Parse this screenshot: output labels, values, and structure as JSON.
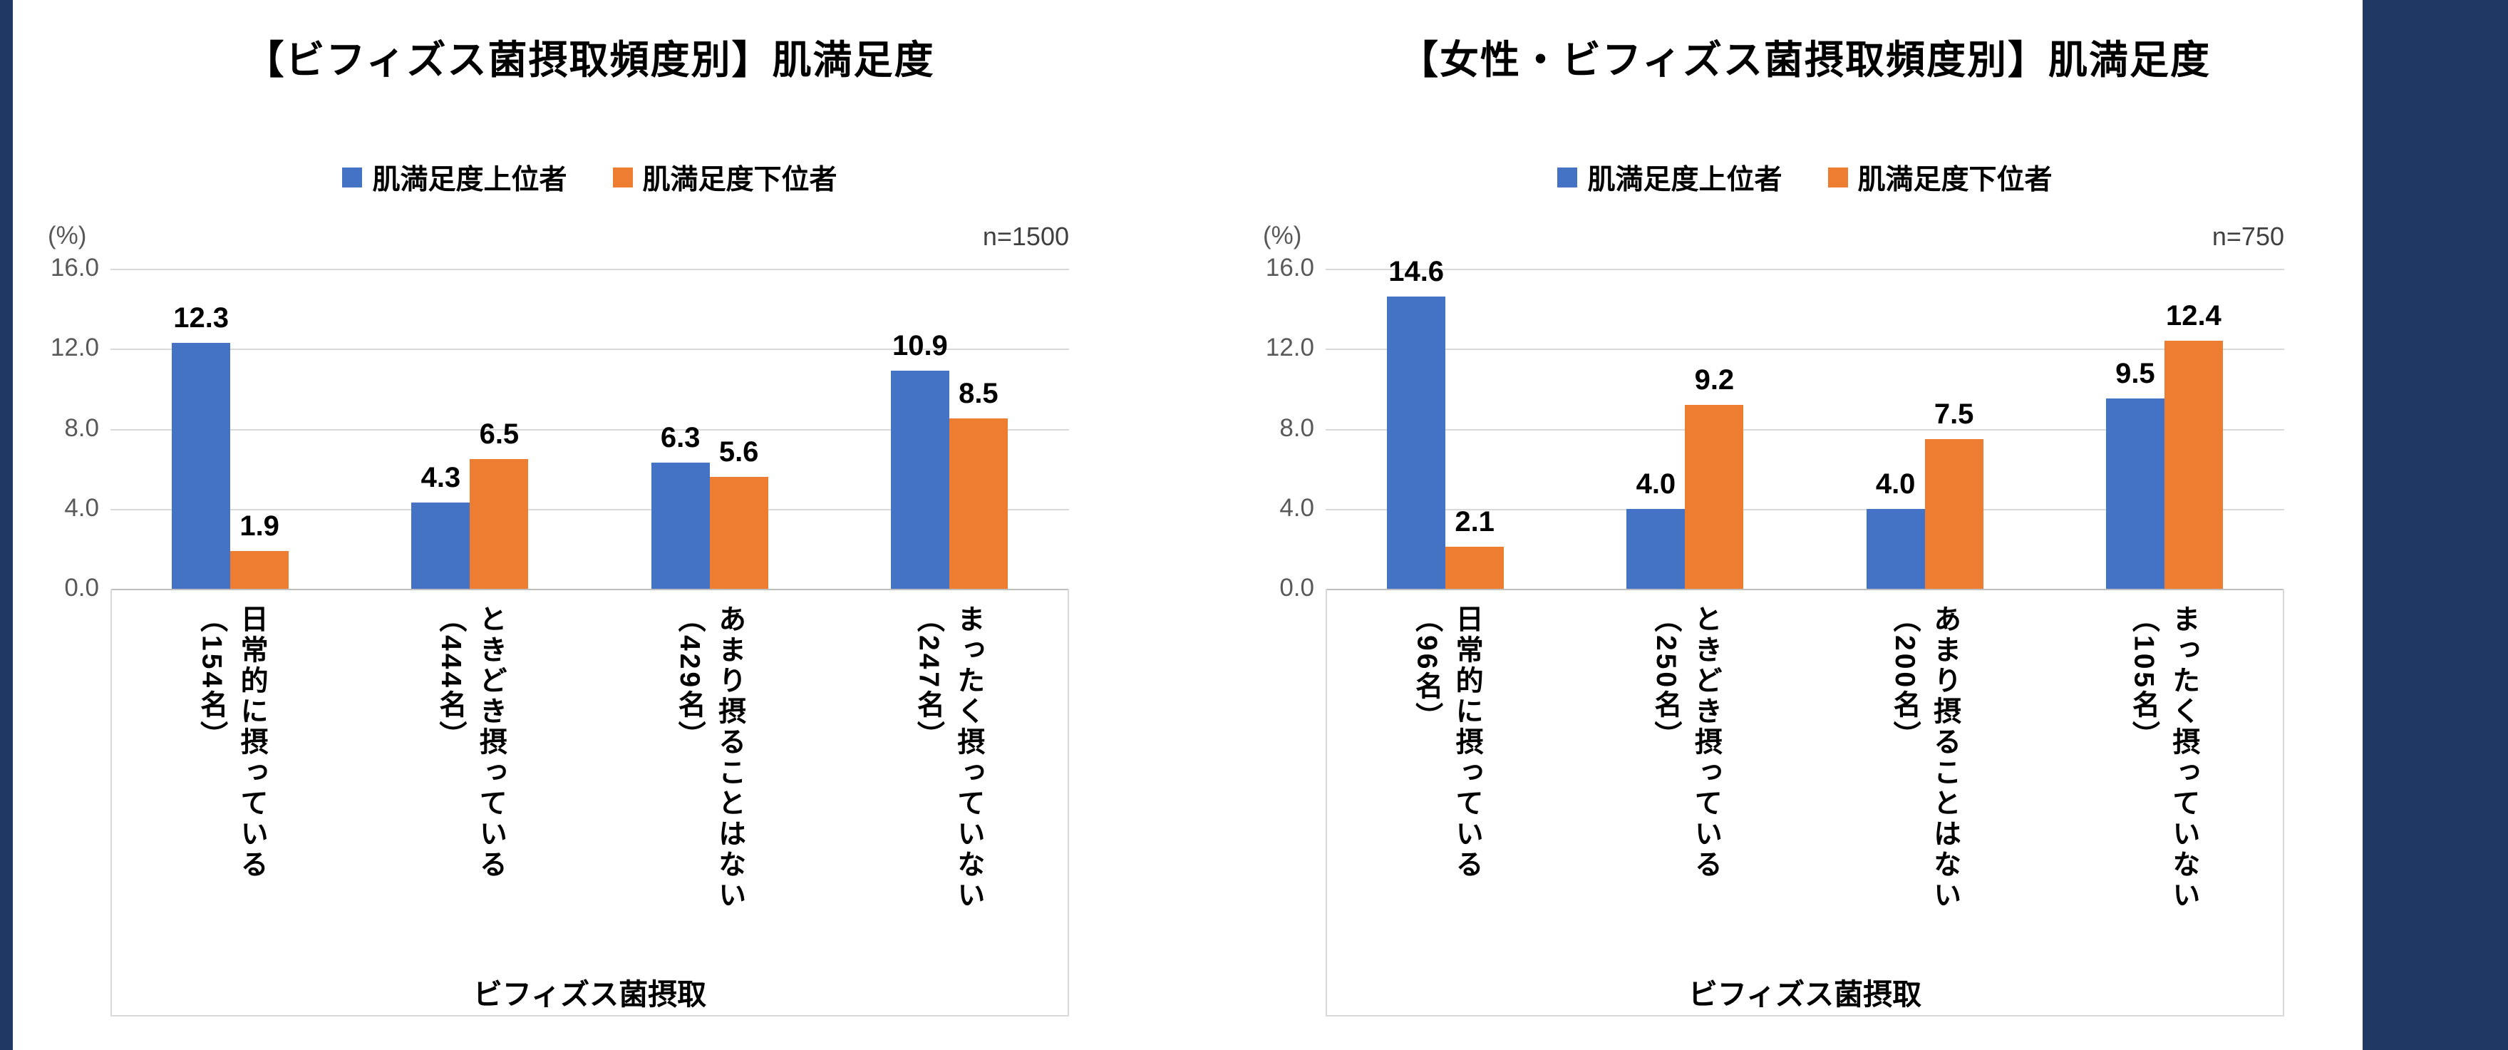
{
  "slide": {
    "background": "#FFFFFF",
    "band_color": "#1F3864"
  },
  "chart_data": [
    {
      "type": "bar",
      "title": "【ビフィズス菌摂取頻度別】肌満足度",
      "n_label": "n=1500",
      "unit_label": "(%)",
      "xlabel": "ビフィズス菌摂取",
      "categories": [
        "日常的に摂っている",
        "ときどき摂っている",
        "あまり摂ることはない",
        "まったく摂っていない"
      ],
      "category_counts": [
        "（154名）",
        "（444名）",
        "（429名）",
        "（247名）"
      ],
      "series": [
        {
          "name": "肌満足度上位者",
          "color": "#4472C4",
          "values": [
            12.3,
            4.3,
            6.3,
            10.9
          ]
        },
        {
          "name": "肌満足度下位者",
          "color": "#ED7D31",
          "values": [
            1.9,
            6.5,
            5.6,
            8.5
          ]
        }
      ],
      "ylim": [
        0,
        16
      ],
      "ytick_labels": [
        "16.0",
        "12.0",
        "8.0",
        "4.0",
        "0.0"
      ],
      "grid": true,
      "legend_position": "top"
    },
    {
      "type": "bar",
      "title": "【女性・ビフィズス菌摂取頻度別】肌満足度",
      "n_label": "n=750",
      "unit_label": "(%)",
      "xlabel": "ビフィズス菌摂取",
      "categories": [
        "日常的に摂っている",
        "ときどき摂っている",
        "あまり摂ることはない",
        "まったく摂っていない"
      ],
      "category_counts": [
        "（96名）",
        "（250名）",
        "（200名）",
        "（105名）"
      ],
      "series": [
        {
          "name": "肌満足度上位者",
          "color": "#4472C4",
          "values": [
            14.6,
            4.0,
            4.0,
            9.5
          ]
        },
        {
          "name": "肌満足度下位者",
          "color": "#ED7D31",
          "values": [
            2.1,
            9.2,
            7.5,
            12.4
          ]
        }
      ],
      "ylim": [
        0,
        16
      ],
      "ytick_labels": [
        "16.0",
        "12.0",
        "8.0",
        "4.0",
        "0.0"
      ],
      "grid": true,
      "legend_position": "top"
    }
  ]
}
